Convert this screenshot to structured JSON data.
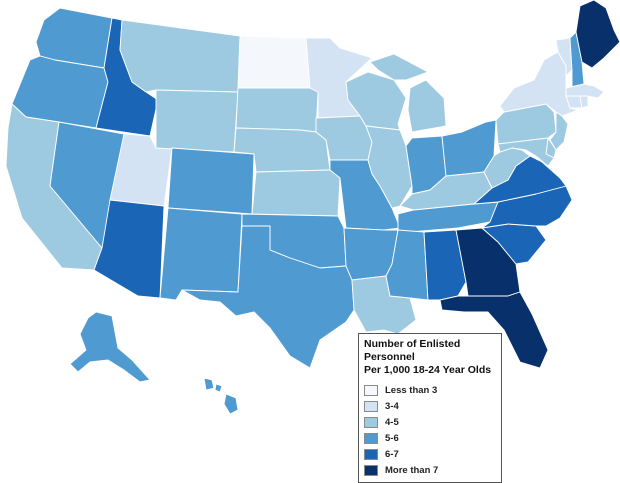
{
  "map": {
    "palette": {
      "lt3": "#f4f8fd",
      "c3_4": "#d4e3f3",
      "c4_5": "#9ecae1",
      "c5_6": "#4f9bd1",
      "c6_7": "#1a65b5",
      "gt7": "#08306b"
    },
    "states": [
      {
        "id": "WA",
        "cat": "c5_6"
      },
      {
        "id": "OR",
        "cat": "c5_6"
      },
      {
        "id": "CA",
        "cat": "c4_5"
      },
      {
        "id": "ID",
        "cat": "c6_7"
      },
      {
        "id": "NV",
        "cat": "c5_6"
      },
      {
        "id": "UT",
        "cat": "c3_4"
      },
      {
        "id": "AZ",
        "cat": "c6_7"
      },
      {
        "id": "MT",
        "cat": "c4_5"
      },
      {
        "id": "WY",
        "cat": "c4_5"
      },
      {
        "id": "CO",
        "cat": "c5_6"
      },
      {
        "id": "NM",
        "cat": "c5_6"
      },
      {
        "id": "ND",
        "cat": "lt3"
      },
      {
        "id": "SD",
        "cat": "c4_5"
      },
      {
        "id": "NE",
        "cat": "c4_5"
      },
      {
        "id": "KS",
        "cat": "c4_5"
      },
      {
        "id": "OK",
        "cat": "c5_6"
      },
      {
        "id": "TX",
        "cat": "c5_6"
      },
      {
        "id": "MN",
        "cat": "c3_4"
      },
      {
        "id": "IA",
        "cat": "c4_5"
      },
      {
        "id": "MO",
        "cat": "c5_6"
      },
      {
        "id": "AR",
        "cat": "c5_6"
      },
      {
        "id": "LA",
        "cat": "c4_5"
      },
      {
        "id": "WI",
        "cat": "c4_5"
      },
      {
        "id": "IL",
        "cat": "c4_5"
      },
      {
        "id": "MI",
        "cat": "c4_5"
      },
      {
        "id": "IN",
        "cat": "c5_6"
      },
      {
        "id": "OH",
        "cat": "c5_6"
      },
      {
        "id": "KY",
        "cat": "c4_5"
      },
      {
        "id": "TN",
        "cat": "c5_6"
      },
      {
        "id": "MS",
        "cat": "c5_6"
      },
      {
        "id": "AL",
        "cat": "c6_7"
      },
      {
        "id": "GA",
        "cat": "gt7"
      },
      {
        "id": "FL",
        "cat": "gt7"
      },
      {
        "id": "SC",
        "cat": "c6_7"
      },
      {
        "id": "NC",
        "cat": "c6_7"
      },
      {
        "id": "VA",
        "cat": "c6_7"
      },
      {
        "id": "WV",
        "cat": "c4_5"
      },
      {
        "id": "PA",
        "cat": "c4_5"
      },
      {
        "id": "NY",
        "cat": "c3_4"
      },
      {
        "id": "VT",
        "cat": "c3_4"
      },
      {
        "id": "NH",
        "cat": "c5_6"
      },
      {
        "id": "ME",
        "cat": "gt7"
      },
      {
        "id": "MA",
        "cat": "c3_4"
      },
      {
        "id": "CT",
        "cat": "c3_4"
      },
      {
        "id": "RI",
        "cat": "c3_4"
      },
      {
        "id": "NJ",
        "cat": "c4_5"
      },
      {
        "id": "DE",
        "cat": "c4_5"
      },
      {
        "id": "MD",
        "cat": "c4_5"
      },
      {
        "id": "AK",
        "cat": "c5_6"
      },
      {
        "id": "HI",
        "cat": "c5_6"
      }
    ]
  },
  "legend": {
    "title_line1": "Number of Enlisted Personnel",
    "title_line2": "Per 1,000 18-24 Year Olds",
    "items": [
      {
        "label": "Less than 3",
        "color": "#f4f8fd"
      },
      {
        "label": "3-4",
        "color": "#d4e3f3"
      },
      {
        "label": "4-5",
        "color": "#9ecae1"
      },
      {
        "label": "5-6",
        "color": "#4f9bd1"
      },
      {
        "label": "6-7",
        "color": "#1a65b5"
      },
      {
        "label": "More than 7",
        "color": "#08306b"
      }
    ]
  }
}
